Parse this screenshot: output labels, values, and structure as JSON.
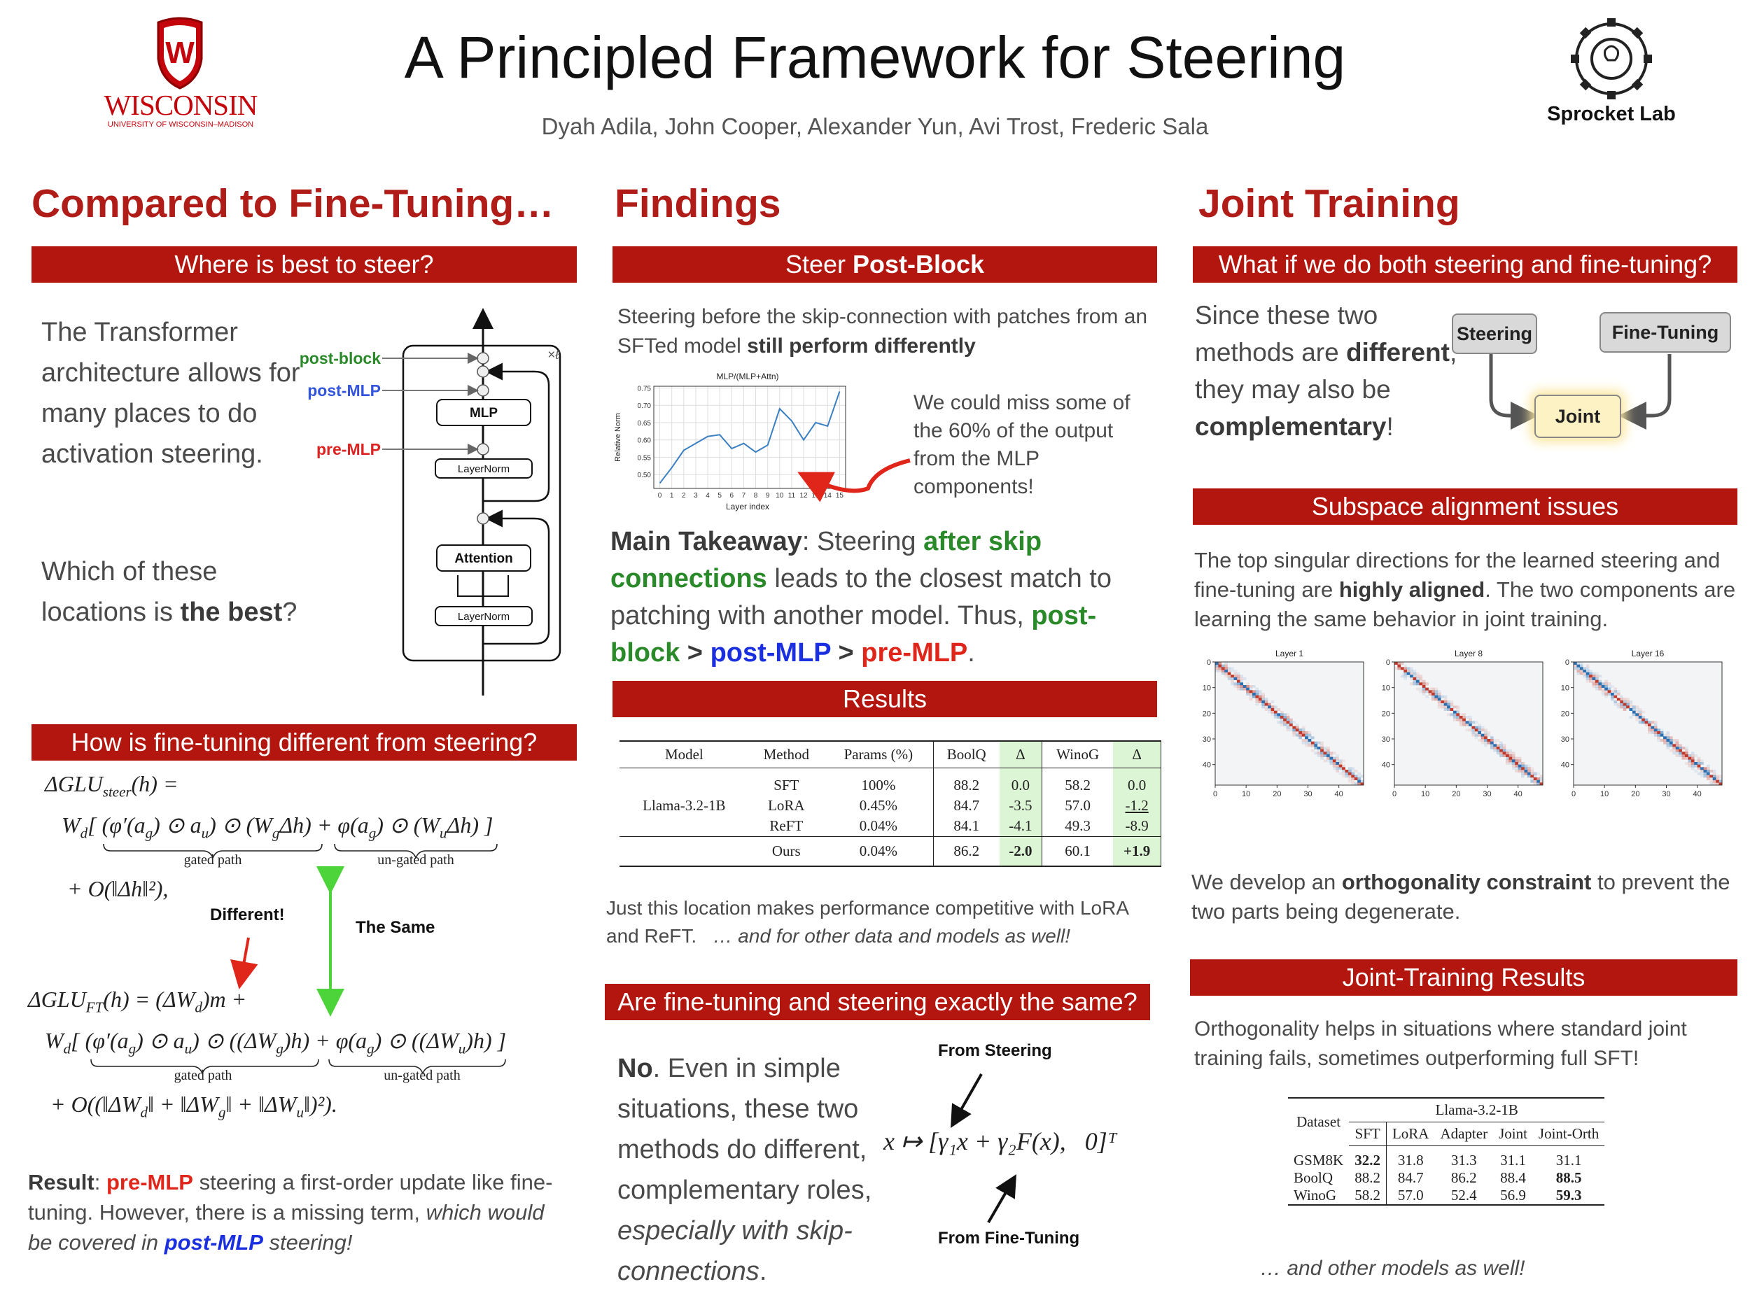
{
  "header": {
    "title": "A Principled Framework for Steering",
    "authors": "Dyah Adila, John Cooper, Alexander Yun, Avi Trost, Frederic Sala",
    "logo_left": {
      "name": "WISCONSIN",
      "subtitle": "UNIVERSITY OF WISCONSIN–MADISON"
    },
    "logo_right": "Sprocket Lab"
  },
  "compared": {
    "heading": "Compared to Fine-Tuning…",
    "where": {
      "title": "Where is best to steer?",
      "text": "The Transformer architecture allows for many places to do activation steering.",
      "question": [
        "Which of these locations is ",
        "the best",
        "?"
      ],
      "diagram": {
        "post_block": "post-block",
        "post_mlp": "post-MLP",
        "pre_mlp": "pre-MLP",
        "mlp": "MLP",
        "layernorm_1": "LayerNorm",
        "attention": "Attention",
        "layernorm_2": "LayerNorm",
        "repeat": "×ℓ"
      }
    },
    "how": {
      "title": "How is fine-tuning different from steering?",
      "eq1": {
        "line1": [
          "ΔGLU",
          "steer",
          "(h) ="
        ],
        "line2": [
          "W",
          "d",
          "[ (φ′(a",
          "g",
          ") ⊙ a",
          "u",
          ") ⊙ (W",
          "g",
          "Δh) + φ(a",
          "g",
          ") ⊙ (W",
          "u",
          "Δh) ]"
        ],
        "gated": "gated path",
        "ungated": "un-gated path",
        "line3": [
          "+ O(‖Δh‖²),"
        ]
      },
      "different": "Different!",
      "same": "The Same",
      "eq2": {
        "line1": [
          "ΔGLU",
          "FT",
          "(h) = (ΔW",
          "d",
          ")m +"
        ],
        "line2": [
          "W",
          "d",
          "[ (φ′(a",
          "g",
          ") ⊙ a",
          "u",
          ") ⊙ ((ΔW",
          "g",
          ")h) + φ(a",
          "g",
          ") ⊙ ((ΔW",
          "u",
          ")h) ]"
        ],
        "gated": "gated path",
        "ungated": "un-gated path",
        "line3": [
          "+ O((‖ΔW",
          "d",
          "‖ + ‖ΔW",
          "g",
          "‖ + ‖ΔW",
          "u",
          "‖)²)."
        ]
      },
      "result": [
        "Result",
        ": ",
        "pre-MLP",
        " steering a first-order update like fine-tuning. However, there is a missing term, ",
        "which would be covered in ",
        "post-MLP",
        " steering!"
      ]
    }
  },
  "findings": {
    "heading": "Findings",
    "post_block": {
      "title": [
        "Steer ",
        "Post-Block"
      ],
      "intro": [
        "Steering before the skip-connection with patches from an SFTed model ",
        "still perform differently"
      ],
      "chart": {
        "type": "line",
        "title": "MLP/(MLP+Attn)",
        "xlabel": "Layer index",
        "ylabel": "Relative Norm",
        "x": [
          0,
          1,
          2,
          3,
          4,
          5,
          6,
          7,
          8,
          9,
          10,
          11,
          12,
          13,
          14,
          15
        ],
        "values": [
          0.475,
          0.52,
          0.57,
          0.59,
          0.61,
          0.615,
          0.575,
          0.59,
          0.565,
          0.585,
          0.69,
          0.655,
          0.6,
          0.65,
          0.64,
          0.74
        ],
        "color": "#3a7fc1",
        "xlim": [
          -0.5,
          15.5
        ],
        "ylim": [
          0.46,
          0.755
        ],
        "xticks": [
          0,
          1,
          2,
          3,
          4,
          5,
          6,
          7,
          8,
          9,
          10,
          11,
          12,
          13,
          14,
          15
        ],
        "yticks": [
          {
            "value": 0.5,
            "label": "0.50"
          },
          {
            "value": 0.55,
            "label": "0.55"
          },
          {
            "value": 0.6,
            "label": "0.60"
          },
          {
            "value": 0.65,
            "label": "0.65"
          },
          {
            "value": 0.7,
            "label": "0.70"
          },
          {
            "value": 0.75,
            "label": "0.75"
          }
        ],
        "grid": true
      },
      "annotation": "We could miss some of the 60% of the output from the MLP components!",
      "takeaway": [
        "Main Takeaway",
        ": Steering ",
        "after skip connections",
        " leads to the closest match to patching with another model. Thus, ",
        "post-block",
        " > ",
        "post-MLP",
        " > ",
        "pre-MLP",
        "."
      ]
    },
    "results": {
      "title": "Results",
      "table": {
        "header": [
          "Model",
          "Method",
          "Params (%)",
          "BoolQ",
          "Δ",
          "WinoG",
          "Δ"
        ],
        "model": "Llama-3.2-1B",
        "rows": [
          [
            "SFT",
            "100%",
            "88.2",
            "0.0",
            "58.2",
            "0.0"
          ],
          [
            "LoRA",
            "0.45%",
            "84.7",
            "-3.5",
            "57.0",
            "-1.2"
          ],
          [
            "ReFT",
            "0.04%",
            "84.1",
            "-4.1",
            "49.3",
            "-8.9"
          ],
          [
            "Ours",
            "0.04%",
            "86.2",
            "-2.0",
            "60.1",
            "+1.9"
          ]
        ]
      },
      "note": [
        "Just this location makes performance competitive with LoRA and ReFT.   ",
        "… and for other data and models as well!"
      ]
    },
    "same": {
      "title": "Are fine-tuning and steering exactly the same?",
      "text": [
        "No",
        ". Even in simple situations, these two methods do different, complementary roles, ",
        "especially with skip-connections",
        "."
      ],
      "from_steering": "From Steering",
      "formula": "x ↦ [γ₁x + γ₂F(x),   0]ᵀ",
      "from_finetuning": "From Fine-Tuning"
    }
  },
  "joint": {
    "heading": "Joint Training",
    "both": {
      "title": "What if we do both steering and fine-tuning?",
      "text": [
        "Since these two methods are ",
        "different",
        ", they may also be ",
        "complementary",
        "!"
      ],
      "nodes": [
        "Steering",
        "Fine-Tuning",
        "Joint"
      ]
    },
    "subspace": {
      "title": "Subspace alignment issues",
      "text": [
        "The top singular directions for the learned steering and fine-tuning are ",
        "highly aligned",
        ". The two components are learning the same behavior in joint training."
      ],
      "heatmaps": {
        "titles": [
          "Layer 1",
          "Layer 8",
          "Layer 16"
        ],
        "xlim": [
          0,
          48
        ],
        "ylim": [
          0,
          48
        ],
        "xticks": [
          0,
          10,
          20,
          30,
          40
        ],
        "yticks": [
          0,
          10,
          20,
          30,
          40
        ]
      },
      "text2": [
        "We develop an ",
        "orthogonality constraint",
        " to prevent the two parts being degenerate."
      ]
    },
    "results": {
      "title": "Joint-Training Results",
      "text": "Orthogonality helps in situations where standard joint training fails, sometimes outperforming full SFT!",
      "table": {
        "corner": "Dataset",
        "group": "Llama-3.2-1B",
        "header": [
          "SFT",
          "LoRA",
          "Adapter",
          "Joint",
          "Joint-Orth"
        ],
        "rows": [
          [
            "GSM8K",
            "32.2",
            "31.8",
            "31.3",
            "31.1",
            "31.1"
          ],
          [
            "BoolQ",
            "88.2",
            "84.7",
            "86.2",
            "88.4",
            "88.5"
          ],
          [
            "WinoG",
            "58.2",
            "57.0",
            "52.4",
            "56.9",
            "59.3"
          ]
        ]
      },
      "footnote": "… and other models as well!"
    }
  }
}
